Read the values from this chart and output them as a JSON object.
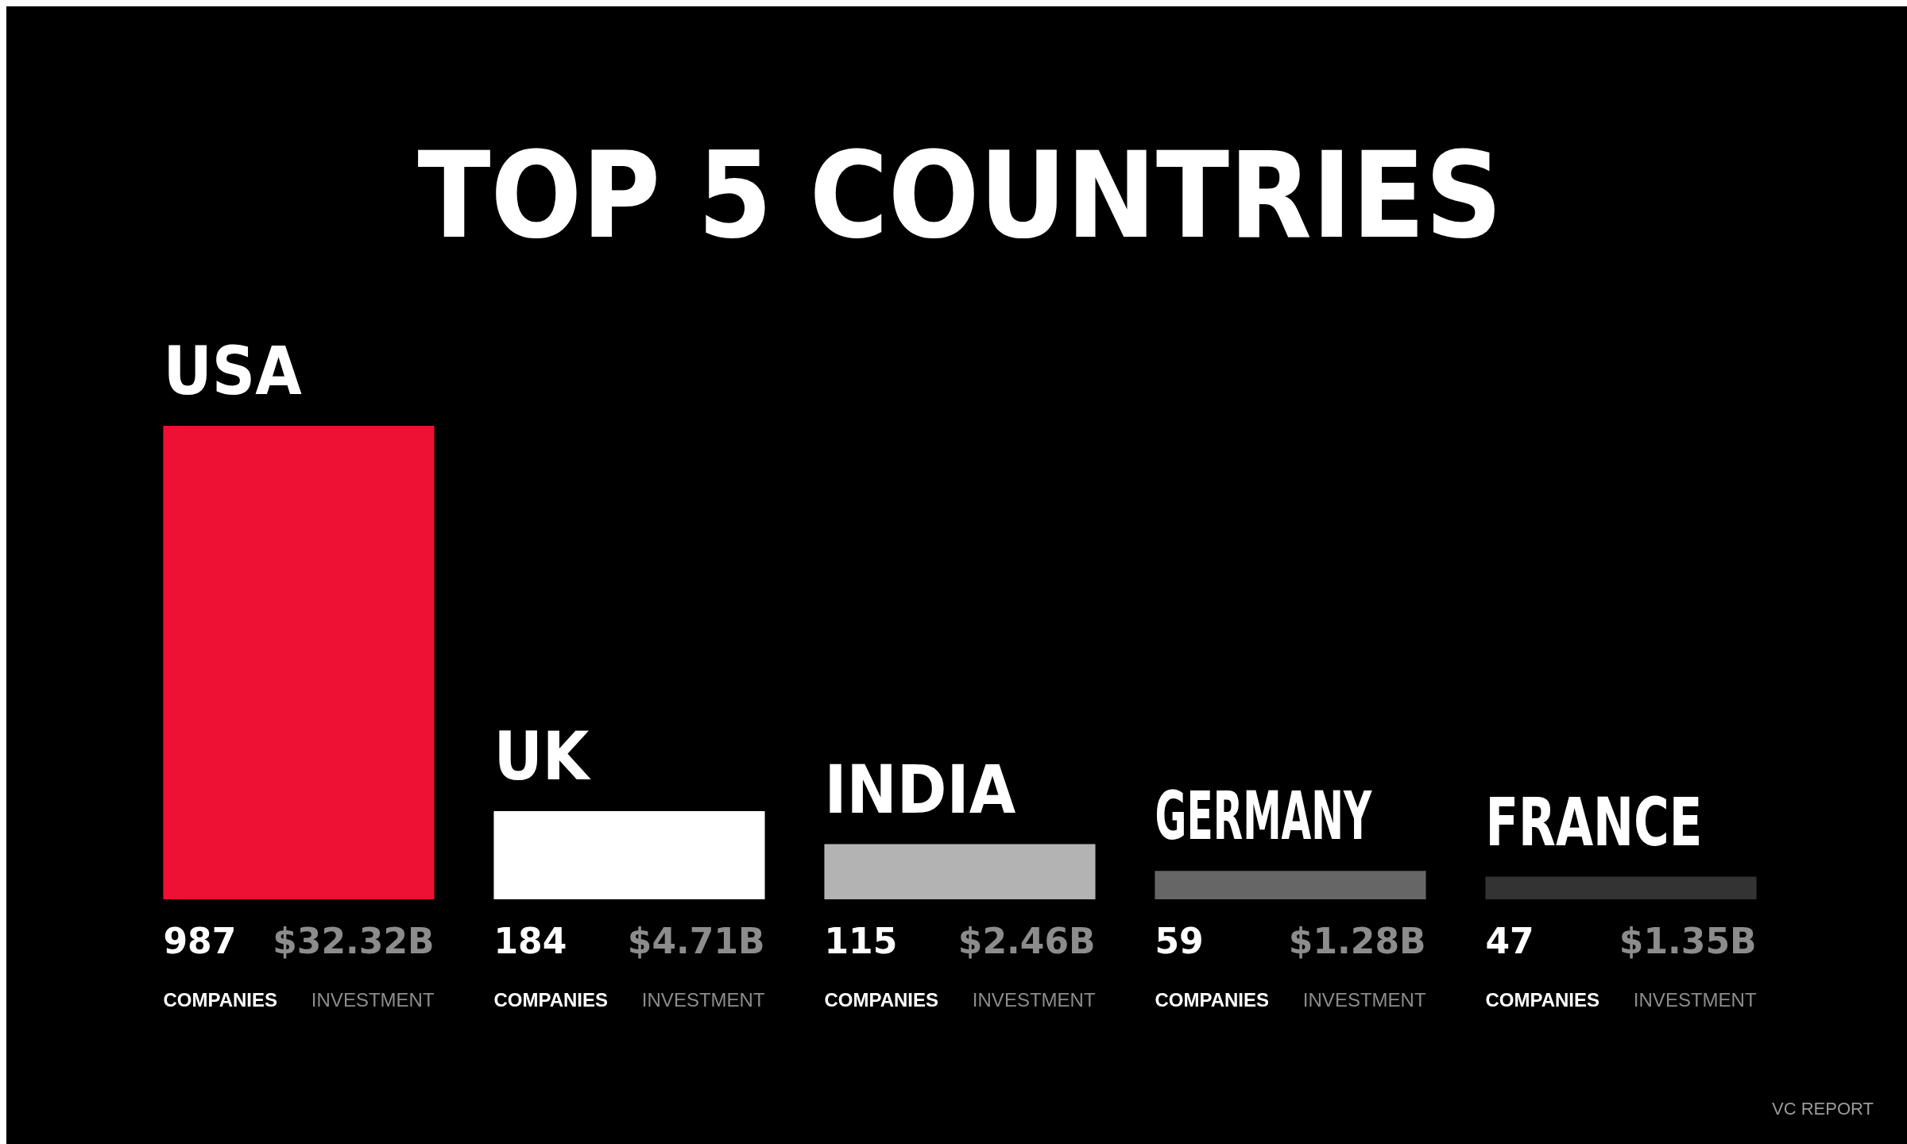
{
  "chart_data": {
    "type": "bar",
    "title": "TOP 5 COUNTRIES",
    "categories": [
      "USA",
      "UK",
      "INDIA",
      "GERMANY",
      "FRANCE"
    ],
    "series": [
      {
        "name": "COMPANIES",
        "values": [
          987,
          184,
          115,
          59,
          47
        ],
        "colors": [
          "#ee1133",
          "#ffffff",
          "#b3b3b3",
          "#666666",
          "#333333"
        ]
      }
    ],
    "data_labels": true,
    "annotations": [
      {
        "text": "$32.32B\nINVESTMENT",
        "x": "USA",
        "y": 0
      },
      {
        "text": "$4.71B\nINVESTMENT",
        "x": "UK",
        "y": 0
      },
      {
        "text": "$2.46B\nINVESTMENT",
        "x": "INDIA",
        "y": 0
      },
      {
        "text": "$1.28B\nINVESTMENT",
        "x": "GERMANY",
        "y": 0
      },
      {
        "text": "$1.35B\nINVESTMENT",
        "x": "FRANCE",
        "y": 0
      },
      "VC REPORT"
    ]
  }
}
